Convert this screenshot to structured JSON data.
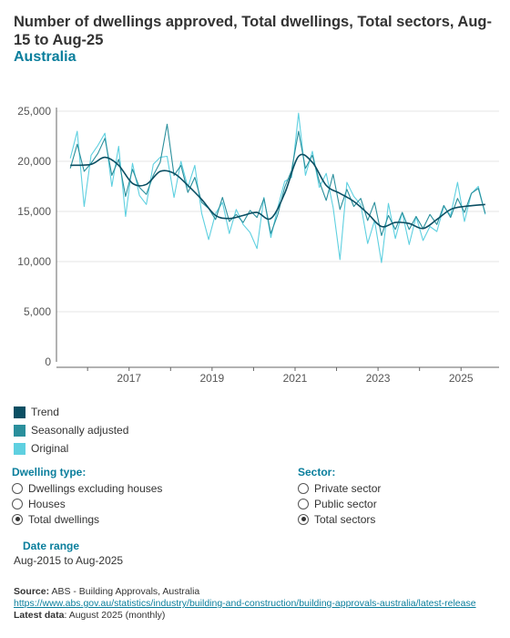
{
  "header": {
    "title": "Number of dwellings approved, Total dwellings, Total sectors, Aug-15 to Aug-25",
    "subtitle": "Australia"
  },
  "legend": [
    {
      "label": "Trend",
      "color": "#0b4f63"
    },
    {
      "label": "Seasonally adjusted",
      "color": "#2a8f9c"
    },
    {
      "label": "Original",
      "color": "#5fd0e0"
    }
  ],
  "dwelling_filter": {
    "heading": "Dwelling type:",
    "options": [
      {
        "label": "Dwellings excluding houses",
        "selected": false
      },
      {
        "label": "Houses",
        "selected": false
      },
      {
        "label": "Total dwellings",
        "selected": true
      }
    ]
  },
  "sector_filter": {
    "heading": "Sector:",
    "options": [
      {
        "label": "Private sector",
        "selected": false
      },
      {
        "label": "Public sector",
        "selected": false
      },
      {
        "label": "Total sectors",
        "selected": true
      }
    ]
  },
  "date_range": {
    "heading": "Date range",
    "value": "Aug-2015 to Aug-2025"
  },
  "source": {
    "label": "Source:",
    "text": "ABS - Building Approvals, Australia",
    "url": "https://www.abs.gov.au/statistics/industry/building-and-construction/building-approvals-australia/latest-release",
    "latest_label": "Latest data",
    "latest_text": ": August 2025 (monthly)"
  },
  "chart_data": {
    "type": "line",
    "title": "",
    "xlabel": "",
    "ylabel": "",
    "x_start": "2015-08",
    "x_end": "2025-08",
    "x_ticks": [
      "2017",
      "2019",
      "2021",
      "2023",
      "2025"
    ],
    "y_ticks": [
      "0",
      "5,000",
      "10,000",
      "15,000",
      "20,000",
      "25,000"
    ],
    "ylim": [
      0,
      25000
    ],
    "grid": true,
    "series": [
      {
        "name": "Trend",
        "color": "#0b4f63",
        "points": [
          [
            "2015-08",
            19600
          ],
          [
            "2016-02",
            19700
          ],
          [
            "2016-06",
            20400
          ],
          [
            "2016-10",
            19600
          ],
          [
            "2017-02",
            17800
          ],
          [
            "2017-06",
            17700
          ],
          [
            "2017-10",
            19000
          ],
          [
            "2018-02",
            18800
          ],
          [
            "2018-06",
            17600
          ],
          [
            "2018-10",
            16200
          ],
          [
            "2019-02",
            14600
          ],
          [
            "2019-06",
            14300
          ],
          [
            "2019-10",
            14600
          ],
          [
            "2020-02",
            14900
          ],
          [
            "2020-06",
            14300
          ],
          [
            "2020-10",
            16800
          ],
          [
            "2021-02",
            20500
          ],
          [
            "2021-06",
            19900
          ],
          [
            "2021-10",
            17600
          ],
          [
            "2022-02",
            16800
          ],
          [
            "2022-06",
            16000
          ],
          [
            "2022-10",
            14800
          ],
          [
            "2023-02",
            13500
          ],
          [
            "2023-06",
            13900
          ],
          [
            "2023-10",
            13800
          ],
          [
            "2024-02",
            13300
          ],
          [
            "2024-06",
            14200
          ],
          [
            "2024-10",
            15200
          ],
          [
            "2025-02",
            15500
          ],
          [
            "2025-08",
            15700
          ]
        ]
      },
      {
        "name": "Seasonally adjusted",
        "color": "#2a8f9c",
        "points": [
          [
            "2015-08",
            19300
          ],
          [
            "2015-10",
            21700
          ],
          [
            "2015-12",
            19000
          ],
          [
            "2016-02",
            19800
          ],
          [
            "2016-04",
            20800
          ],
          [
            "2016-06",
            22300
          ],
          [
            "2016-08",
            18600
          ],
          [
            "2016-10",
            20200
          ],
          [
            "2016-12",
            16500
          ],
          [
            "2017-02",
            19200
          ],
          [
            "2017-04",
            17400
          ],
          [
            "2017-06",
            16700
          ],
          [
            "2017-08",
            18600
          ],
          [
            "2017-10",
            19900
          ],
          [
            "2017-12",
            23700
          ],
          [
            "2018-02",
            18600
          ],
          [
            "2018-04",
            19600
          ],
          [
            "2018-06",
            16900
          ],
          [
            "2018-08",
            18400
          ],
          [
            "2018-10",
            15900
          ],
          [
            "2018-12",
            15300
          ],
          [
            "2019-02",
            14200
          ],
          [
            "2019-04",
            16400
          ],
          [
            "2019-06",
            14000
          ],
          [
            "2019-08",
            14700
          ],
          [
            "2019-10",
            13900
          ],
          [
            "2019-12",
            15100
          ],
          [
            "2020-02",
            14400
          ],
          [
            "2020-04",
            16300
          ],
          [
            "2020-06",
            12800
          ],
          [
            "2020-08",
            14700
          ],
          [
            "2020-10",
            17400
          ],
          [
            "2020-12",
            19100
          ],
          [
            "2021-02",
            23000
          ],
          [
            "2021-04",
            19300
          ],
          [
            "2021-06",
            20600
          ],
          [
            "2021-08",
            18000
          ],
          [
            "2021-10",
            16100
          ],
          [
            "2021-12",
            18700
          ],
          [
            "2022-02",
            15200
          ],
          [
            "2022-04",
            17200
          ],
          [
            "2022-06",
            15500
          ],
          [
            "2022-08",
            16300
          ],
          [
            "2022-10",
            14100
          ],
          [
            "2022-12",
            15900
          ],
          [
            "2023-02",
            12600
          ],
          [
            "2023-04",
            14600
          ],
          [
            "2023-06",
            13200
          ],
          [
            "2023-08",
            14900
          ],
          [
            "2023-10",
            13200
          ],
          [
            "2023-12",
            14500
          ],
          [
            "2024-02",
            13300
          ],
          [
            "2024-04",
            14700
          ],
          [
            "2024-06",
            13700
          ],
          [
            "2024-08",
            15600
          ],
          [
            "2024-10",
            14400
          ],
          [
            "2024-12",
            16300
          ],
          [
            "2025-02",
            14900
          ],
          [
            "2025-04",
            16800
          ],
          [
            "2025-06",
            17300
          ],
          [
            "2025-08",
            14800
          ]
        ]
      },
      {
        "name": "Original",
        "color": "#5fd0e0",
        "points": [
          [
            "2015-08",
            20300
          ],
          [
            "2015-10",
            23000
          ],
          [
            "2015-12",
            15500
          ],
          [
            "2016-02",
            20600
          ],
          [
            "2016-04",
            21600
          ],
          [
            "2016-06",
            22800
          ],
          [
            "2016-08",
            17500
          ],
          [
            "2016-10",
            21500
          ],
          [
            "2016-12",
            14500
          ],
          [
            "2017-02",
            19800
          ],
          [
            "2017-04",
            16600
          ],
          [
            "2017-06",
            15700
          ],
          [
            "2017-08",
            19700
          ],
          [
            "2017-10",
            20400
          ],
          [
            "2017-12",
            20500
          ],
          [
            "2018-02",
            16400
          ],
          [
            "2018-04",
            20000
          ],
          [
            "2018-06",
            17400
          ],
          [
            "2018-08",
            19600
          ],
          [
            "2018-10",
            14800
          ],
          [
            "2018-12",
            12200
          ],
          [
            "2019-02",
            14800
          ],
          [
            "2019-04",
            15900
          ],
          [
            "2019-06",
            12800
          ],
          [
            "2019-08",
            15200
          ],
          [
            "2019-10",
            13700
          ],
          [
            "2019-12",
            12900
          ],
          [
            "2020-02",
            11300
          ],
          [
            "2020-04",
            16400
          ],
          [
            "2020-06",
            12400
          ],
          [
            "2020-08",
            15400
          ],
          [
            "2020-10",
            18000
          ],
          [
            "2020-12",
            18400
          ],
          [
            "2021-02",
            24800
          ],
          [
            "2021-04",
            18600
          ],
          [
            "2021-06",
            21000
          ],
          [
            "2021-08",
            17400
          ],
          [
            "2021-10",
            18800
          ],
          [
            "2021-12",
            15400
          ],
          [
            "2022-02",
            10200
          ],
          [
            "2022-04",
            17900
          ],
          [
            "2022-06",
            16500
          ],
          [
            "2022-08",
            15700
          ],
          [
            "2022-10",
            11800
          ],
          [
            "2022-12",
            14100
          ],
          [
            "2023-02",
            9900
          ],
          [
            "2023-04",
            15800
          ],
          [
            "2023-06",
            12300
          ],
          [
            "2023-08",
            14900
          ],
          [
            "2023-10",
            11700
          ],
          [
            "2023-12",
            14500
          ],
          [
            "2024-02",
            12100
          ],
          [
            "2024-04",
            13500
          ],
          [
            "2024-06",
            13000
          ],
          [
            "2024-08",
            15500
          ],
          [
            "2024-10",
            14600
          ],
          [
            "2024-12",
            17900
          ],
          [
            "2025-02",
            14000
          ],
          [
            "2025-04",
            16800
          ],
          [
            "2025-06",
            17500
          ],
          [
            "2025-08",
            14700
          ]
        ]
      }
    ]
  }
}
